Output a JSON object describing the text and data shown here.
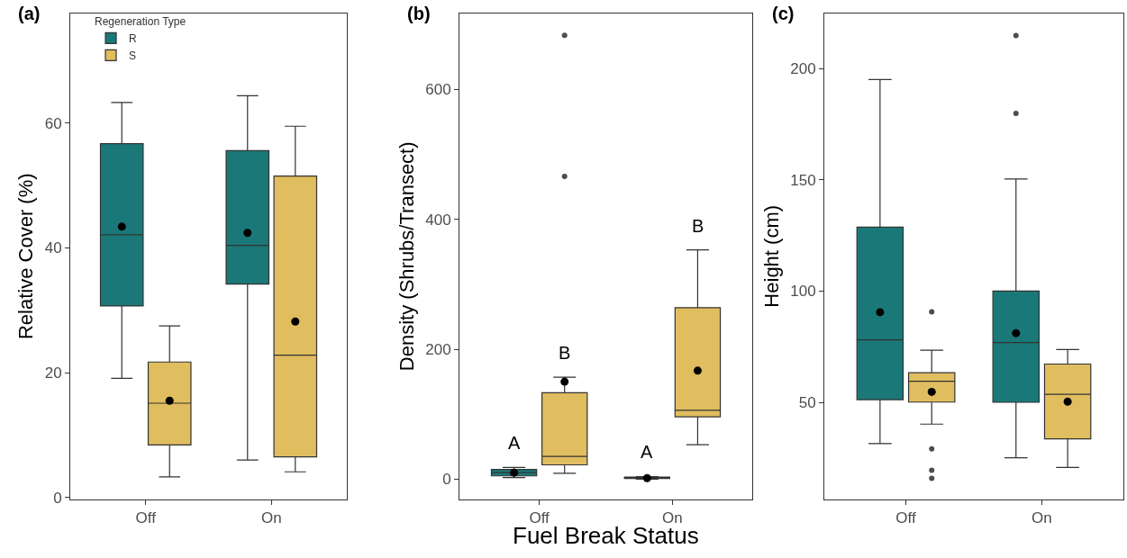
{
  "chart_data": [
    {
      "type": "box",
      "title": "(a)",
      "ylabel": "Relative Cover (%)",
      "categories": [
        "Off",
        "On"
      ],
      "ylim": [
        -0.3,
        77.6
      ],
      "yticks": [
        0,
        20,
        40,
        60
      ],
      "legend": "top left",
      "legend_title": "Regeneration Type",
      "series": [
        {
          "name": "R",
          "color": "#1b7878",
          "boxes": [
            {
              "low": 19.1,
              "q1": 30.7,
              "median": 42.1,
              "q3": 56.7,
              "high": 63.3,
              "mean": 43.4
            },
            {
              "low": 6.0,
              "q1": 34.2,
              "median": 40.4,
              "q3": 55.6,
              "high": 64.4,
              "mean": 42.4
            }
          ]
        },
        {
          "name": "S",
          "color": "#e0bd5f",
          "boxes": [
            {
              "low": 3.3,
              "q1": 8.4,
              "median": 15.1,
              "q3": 21.7,
              "high": 27.5,
              "mean": 15.5
            },
            {
              "low": 4.1,
              "q1": 6.5,
              "median": 22.8,
              "q3": 51.5,
              "high": 59.5,
              "mean": 28.2
            }
          ]
        }
      ]
    },
    {
      "type": "box",
      "title": "(b)",
      "ylabel": "Density (Shrubs/Transect)",
      "xlabel": "Fuel Break Status",
      "categories": [
        "Off",
        "On"
      ],
      "ylim": [
        -31,
        717
      ],
      "yticks": [
        0,
        200,
        400,
        600
      ],
      "annotations": [
        "A",
        "B",
        "A",
        "B"
      ],
      "series": [
        {
          "color": "#1b7878",
          "boxes": [
            {
              "low": 2.5,
              "q1": 5,
              "median": 10,
              "q3": 15,
              "high": 18,
              "mean": 10
            },
            {
              "low": 0,
              "q1": 1,
              "median": 2,
              "q3": 3,
              "high": 4,
              "mean": 1.5
            }
          ]
        },
        {
          "color": "#e0bd5f",
          "boxes": [
            {
              "low": 9,
              "q1": 22,
              "median": 35,
              "q3": 133,
              "high": 157,
              "mean": 150,
              "outliers": [
                466,
                683
              ]
            },
            {
              "low": 53,
              "q1": 96,
              "median": 106,
              "q3": 264,
              "high": 353,
              "mean": 167
            }
          ]
        }
      ]
    },
    {
      "type": "box",
      "title": "(c)",
      "ylabel": "Height (cm)",
      "categories": [
        "Off",
        "On"
      ],
      "ylim": [
        6.4,
        224.9
      ],
      "yticks": [
        50,
        100,
        150,
        200
      ],
      "series": [
        {
          "color": "#1b7878",
          "boxes": [
            {
              "low": 31.4,
              "q1": 51.2,
              "median": 78.1,
              "q3": 128.8,
              "high": 195.1,
              "mean": 90.5
            },
            {
              "low": 25.1,
              "q1": 50,
              "median": 76.9,
              "q3": 100,
              "high": 150.4,
              "mean": 81.1,
              "outliers": [
                214.9,
                179.9
              ]
            }
          ]
        },
        {
          "color": "#e0bd5f",
          "boxes": [
            {
              "low": 40.2,
              "q1": 50.1,
              "median": 59.5,
              "q3": 63.3,
              "high": 73.4,
              "mean": 54.7,
              "outliers": [
                90.7,
                29.1,
                19.5,
                15.8
              ]
            },
            {
              "low": 20.7,
              "q1": 33.6,
              "median": 53.6,
              "q3": 67.2,
              "high": 73.7,
              "mean": 50.3
            }
          ]
        }
      ]
    }
  ]
}
